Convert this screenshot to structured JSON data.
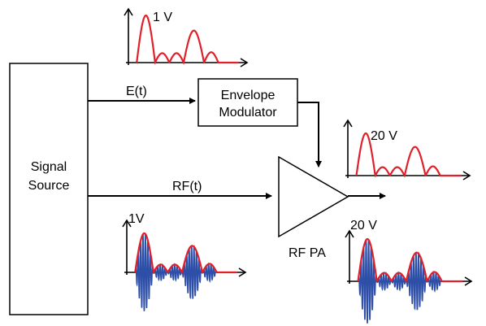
{
  "blocks": {
    "signal_source": {
      "line1": "Signal",
      "line2": "Source"
    },
    "envelope_modulator": {
      "line1": "Envelope",
      "line2": "Modulator"
    },
    "amplifier": {
      "label": "RF PA"
    }
  },
  "signals": {
    "envelope": {
      "label": "E(t)"
    },
    "rf": {
      "label": "RF(t)"
    }
  },
  "waveforms": {
    "envelope_input": {
      "amplitude_label": "1 V"
    },
    "envelope_output": {
      "amplitude_label": "20 V"
    },
    "rf_input": {
      "amplitude_label": "1V"
    },
    "rf_output": {
      "amplitude_label": "20 V"
    }
  },
  "colors": {
    "envelope_curve": "#e0202a",
    "rf_carrier": "#2e4fa8",
    "lines": "#000000"
  }
}
